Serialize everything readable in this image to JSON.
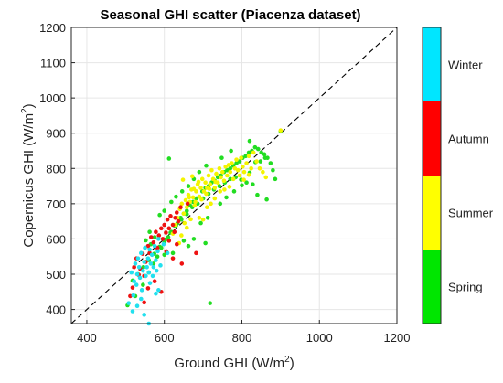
{
  "chart_data": {
    "type": "scatter",
    "title": "Seasonal GHI scatter (Piacenza dataset)",
    "xlabel": "Ground GHI (W/m",
    "xlabel_sup": "2",
    "xlabel_end": ")",
    "ylabel": "Copernicus GHI (W/m",
    "ylabel_sup": "2",
    "ylabel_end": ")",
    "xlim": [
      360,
      1200
    ],
    "ylim": [
      360,
      1200
    ],
    "xticks": [
      400,
      600,
      800,
      1000,
      1200
    ],
    "yticks": [
      400,
      500,
      600,
      700,
      800,
      900,
      1000,
      1100,
      1200
    ],
    "grid": true,
    "reference_line": "y = x (dashed)",
    "colorbar": {
      "position": "right",
      "categories": [
        {
          "label": "Spring",
          "color": "#00e600"
        },
        {
          "label": "Summer",
          "color": "#ffff00"
        },
        {
          "label": "Autumn",
          "color": "#ff0000"
        },
        {
          "label": "Winter",
          "color": "#00e6ff"
        }
      ]
    },
    "series": [
      {
        "name": "Winter",
        "color": "#22e0ee",
        "points": [
          [
            508,
            418
          ],
          [
            515,
            505
          ],
          [
            520,
            440
          ],
          [
            522,
            480
          ],
          [
            525,
            530
          ],
          [
            528,
            470
          ],
          [
            530,
            500
          ],
          [
            532,
            545
          ],
          [
            535,
            520
          ],
          [
            537,
            490
          ],
          [
            540,
            560
          ],
          [
            542,
            455
          ],
          [
            545,
            510
          ],
          [
            548,
            535
          ],
          [
            550,
            575
          ],
          [
            552,
            495
          ],
          [
            555,
            520
          ],
          [
            558,
            545
          ],
          [
            560,
            505
          ],
          [
            562,
            570
          ],
          [
            565,
            530
          ],
          [
            568,
            555
          ],
          [
            570,
            495
          ],
          [
            572,
            520
          ],
          [
            575,
            580
          ],
          [
            578,
            540
          ],
          [
            580,
            510
          ],
          [
            583,
            565
          ],
          [
            585,
            600
          ],
          [
            548,
            385
          ],
          [
            560,
            360
          ],
          [
            578,
            445
          ],
          [
            585,
            455
          ],
          [
            530,
            410
          ],
          [
            540,
            430
          ],
          [
            598,
            585
          ],
          [
            608,
            560
          ],
          [
            518,
            395
          ],
          [
            563,
            475
          ],
          [
            590,
            525
          ]
        ]
      },
      {
        "name": "Autumn",
        "color": "#ee1111",
        "points": [
          [
            512,
            438
          ],
          [
            518,
            462
          ],
          [
            522,
            520
          ],
          [
            528,
            545
          ],
          [
            534,
            498
          ],
          [
            538,
            515
          ],
          [
            544,
            558
          ],
          [
            548,
            495
          ],
          [
            552,
            535
          ],
          [
            558,
            580
          ],
          [
            562,
            560
          ],
          [
            566,
            605
          ],
          [
            572,
            590
          ],
          [
            578,
            620
          ],
          [
            582,
            575
          ],
          [
            586,
            610
          ],
          [
            592,
            630
          ],
          [
            596,
            600
          ],
          [
            600,
            640
          ],
          [
            604,
            618
          ],
          [
            608,
            655
          ],
          [
            612,
            630
          ],
          [
            616,
            665
          ],
          [
            622,
            640
          ],
          [
            628,
            660
          ],
          [
            632,
            675
          ],
          [
            636,
            650
          ],
          [
            642,
            690
          ],
          [
            605,
            565
          ],
          [
            612,
            595
          ],
          [
            622,
            545
          ],
          [
            632,
            585
          ],
          [
            645,
            530
          ],
          [
            682,
            560
          ],
          [
            592,
            450
          ],
          [
            575,
            480
          ],
          [
            548,
            420
          ],
          [
            660,
            700
          ],
          [
            558,
            460
          ],
          [
            626,
            620
          ]
        ]
      },
      {
        "name": "Summer",
        "color": "#f4f400",
        "points": [
          [
            622,
            615
          ],
          [
            628,
            640
          ],
          [
            634,
            660
          ],
          [
            640,
            685
          ],
          [
            645,
            700
          ],
          [
            650,
            672
          ],
          [
            655,
            710
          ],
          [
            658,
            690
          ],
          [
            662,
            725
          ],
          [
            666,
            705
          ],
          [
            670,
            740
          ],
          [
            674,
            718
          ],
          [
            678,
            695
          ],
          [
            682,
            735
          ],
          [
            686,
            755
          ],
          [
            690,
            720
          ],
          [
            694,
            745
          ],
          [
            698,
            770
          ],
          [
            702,
            735
          ],
          [
            706,
            760
          ],
          [
            710,
            745
          ],
          [
            714,
            780
          ],
          [
            718,
            755
          ],
          [
            722,
            795
          ],
          [
            726,
            770
          ],
          [
            730,
            745
          ],
          [
            734,
            785
          ],
          [
            738,
            760
          ],
          [
            742,
            800
          ],
          [
            746,
            775
          ],
          [
            750,
            790
          ],
          [
            754,
            765
          ],
          [
            758,
            805
          ],
          [
            762,
            780
          ],
          [
            766,
            810
          ],
          [
            770,
            790
          ],
          [
            774,
            815
          ],
          [
            778,
            770
          ],
          [
            782,
            800
          ],
          [
            786,
            825
          ],
          [
            790,
            795
          ],
          [
            794,
            780
          ],
          [
            798,
            830
          ],
          [
            802,
            805
          ],
          [
            806,
            790
          ],
          [
            812,
            815
          ],
          [
            818,
            835
          ],
          [
            824,
            800
          ],
          [
            830,
            845
          ],
          [
            838,
            820
          ],
          [
            846,
            800
          ],
          [
            854,
            790
          ],
          [
            862,
            775
          ],
          [
            690,
            660
          ],
          [
            700,
            655
          ],
          [
            710,
            690
          ],
          [
            720,
            700
          ],
          [
            730,
            715
          ],
          [
            648,
            768
          ],
          [
            672,
            778
          ],
          [
            658,
            632
          ],
          [
            664,
            718
          ],
          [
            676,
            742
          ],
          [
            688,
            762
          ],
          [
            708,
            728
          ],
          [
            716,
            742
          ],
          [
            732,
            762
          ],
          [
            744,
            735
          ],
          [
            755,
            740
          ],
          [
            768,
            748
          ],
          [
            805,
            768
          ],
          [
            818,
            782
          ],
          [
            680,
            705
          ],
          [
            696,
            712
          ],
          [
            900,
            908
          ],
          [
            652,
            645
          ],
          [
            638,
            588
          ],
          [
            644,
            610
          ],
          [
            668,
            656
          ]
        ]
      },
      {
        "name": "Spring",
        "color": "#22dd22",
        "points": [
          [
            505,
            412
          ],
          [
            525,
            438
          ],
          [
            545,
            470
          ],
          [
            560,
            505
          ],
          [
            572,
            530
          ],
          [
            582,
            550
          ],
          [
            592,
            575
          ],
          [
            600,
            590
          ],
          [
            610,
            605
          ],
          [
            618,
            620
          ],
          [
            626,
            638
          ],
          [
            634,
            645
          ],
          [
            642,
            660
          ],
          [
            650,
            672
          ],
          [
            658,
            680
          ],
          [
            666,
            695
          ],
          [
            674,
            705
          ],
          [
            682,
            715
          ],
          [
            690,
            720
          ],
          [
            698,
            735
          ],
          [
            706,
            745
          ],
          [
            714,
            750
          ],
          [
            722,
            760
          ],
          [
            730,
            765
          ],
          [
            738,
            775
          ],
          [
            746,
            780
          ],
          [
            754,
            790
          ],
          [
            762,
            795
          ],
          [
            770,
            800
          ],
          [
            778,
            808
          ],
          [
            786,
            815
          ],
          [
            794,
            820
          ],
          [
            802,
            830
          ],
          [
            810,
            835
          ],
          [
            818,
            845
          ],
          [
            826,
            850
          ],
          [
            834,
            860
          ],
          [
            842,
            855
          ],
          [
            850,
            845
          ],
          [
            858,
            840
          ],
          [
            866,
            830
          ],
          [
            874,
            815
          ],
          [
            880,
            795
          ],
          [
            886,
            770
          ],
          [
            864,
            712
          ],
          [
            840,
            725
          ],
          [
            828,
            755
          ],
          [
            812,
            760
          ],
          [
            798,
            768
          ],
          [
            784,
            775
          ],
          [
            770,
            770
          ],
          [
            756,
            760
          ],
          [
            742,
            750
          ],
          [
            728,
            740
          ],
          [
            714,
            728
          ],
          [
            700,
            715
          ],
          [
            686,
            700
          ],
          [
            672,
            690
          ],
          [
            658,
            670
          ],
          [
            644,
            655
          ],
          [
            630,
            638
          ],
          [
            616,
            618
          ],
          [
            602,
            598
          ],
          [
            588,
            578
          ],
          [
            574,
            558
          ],
          [
            560,
            540
          ],
          [
            546,
            520
          ],
          [
            532,
            500
          ],
          [
            518,
            482
          ],
          [
            612,
            828
          ],
          [
            706,
            588
          ],
          [
            718,
            418
          ],
          [
            582,
            352
          ],
          [
            565,
            585
          ],
          [
            552,
            596
          ],
          [
            562,
            620
          ],
          [
            575,
            605
          ],
          [
            600,
            555
          ],
          [
            622,
            560
          ],
          [
            650,
            595
          ],
          [
            662,
            580
          ],
          [
            676,
            600
          ],
          [
            694,
            645
          ],
          [
            712,
            660
          ],
          [
            744,
            700
          ],
          [
            760,
            718
          ],
          [
            780,
            735
          ],
          [
            800,
            752
          ],
          [
            820,
            788
          ],
          [
            835,
            818
          ],
          [
            848,
            820
          ],
          [
            860,
            830
          ],
          [
            900,
            905
          ],
          [
            820,
            878
          ],
          [
            772,
            850
          ],
          [
            748,
            830
          ],
          [
            708,
            808
          ],
          [
            690,
            790
          ],
          [
            676,
            770
          ],
          [
            662,
            750
          ],
          [
            646,
            735
          ],
          [
            630,
            720
          ],
          [
            618,
            705
          ],
          [
            600,
            680
          ],
          [
            588,
            668
          ]
        ]
      }
    ]
  }
}
